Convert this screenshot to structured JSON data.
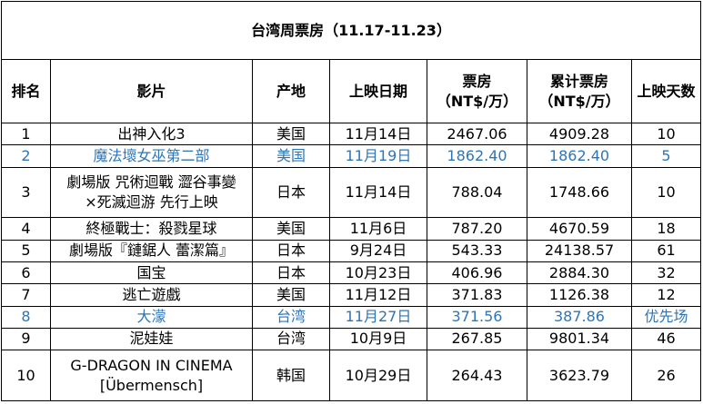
{
  "title": "台湾周票房（11.17-11.23）",
  "columns": {
    "rank": "排名",
    "film": "影片",
    "region": "产地",
    "release": "上映日期",
    "box_line1": "票房",
    "box_line2": "（NT$/万）",
    "total_line1": "累计票房",
    "total_line2": "（NT$/万）",
    "days": "上映天数"
  },
  "highlight_color": "#2e75b6",
  "rows": [
    {
      "rank": "1",
      "film_line1": "出神入化3",
      "film_line2": "",
      "region": "美国",
      "release": "11月14日",
      "box": "2467.06",
      "total": "4909.28",
      "days": "10",
      "highlight": false
    },
    {
      "rank": "2",
      "film_line1": "魔法壞女巫第二部",
      "film_line2": "",
      "region": "美国",
      "release": "11月19日",
      "box": "1862.40",
      "total": "1862.40",
      "days": "5",
      "highlight": true
    },
    {
      "rank": "3",
      "film_line1": "劇場版 咒術迴戰 澀谷事變",
      "film_line2": "×死滅迴游 先行上映",
      "region": "日本",
      "release": "11月14日",
      "box": "788.04",
      "total": "1748.66",
      "days": "10",
      "highlight": false
    },
    {
      "rank": "4",
      "film_line1": "終極戰士：殺戮星球",
      "film_line2": "",
      "region": "美国",
      "release": "11月6日",
      "box": "787.20",
      "total": "4670.59",
      "days": "18",
      "highlight": false
    },
    {
      "rank": "5",
      "film_line1": "劇場版『鏈鋸人 蕾潔篇』",
      "film_line2": "",
      "region": "日本",
      "release": "9月24日",
      "box": "543.33",
      "total": "24138.57",
      "days": "61",
      "highlight": false
    },
    {
      "rank": "6",
      "film_line1": "国宝",
      "film_line2": "",
      "region": "日本",
      "release": "10月23日",
      "box": "406.96",
      "total": "2884.30",
      "days": "32",
      "highlight": false
    },
    {
      "rank": "7",
      "film_line1": "逃亡遊戲",
      "film_line2": "",
      "region": "美国",
      "release": "11月12日",
      "box": "371.83",
      "total": "1126.38",
      "days": "12",
      "highlight": false
    },
    {
      "rank": "8",
      "film_line1": "大濛",
      "film_line2": "",
      "region": "台湾",
      "release": "11月27日",
      "box": "371.56",
      "total": "387.86",
      "days": "优先场",
      "highlight": true
    },
    {
      "rank": "9",
      "film_line1": "泥娃娃",
      "film_line2": "",
      "region": "台湾",
      "release": "10月9日",
      "box": "267.85",
      "total": "9801.34",
      "days": "46",
      "highlight": false
    },
    {
      "rank": "10",
      "film_line1": "G-DRAGON IN CINEMA",
      "film_line2": "[Übermensch]",
      "region": "韩国",
      "release": "10月29日",
      "box": "264.43",
      "total": "3623.79",
      "days": "26",
      "highlight": false
    }
  ]
}
